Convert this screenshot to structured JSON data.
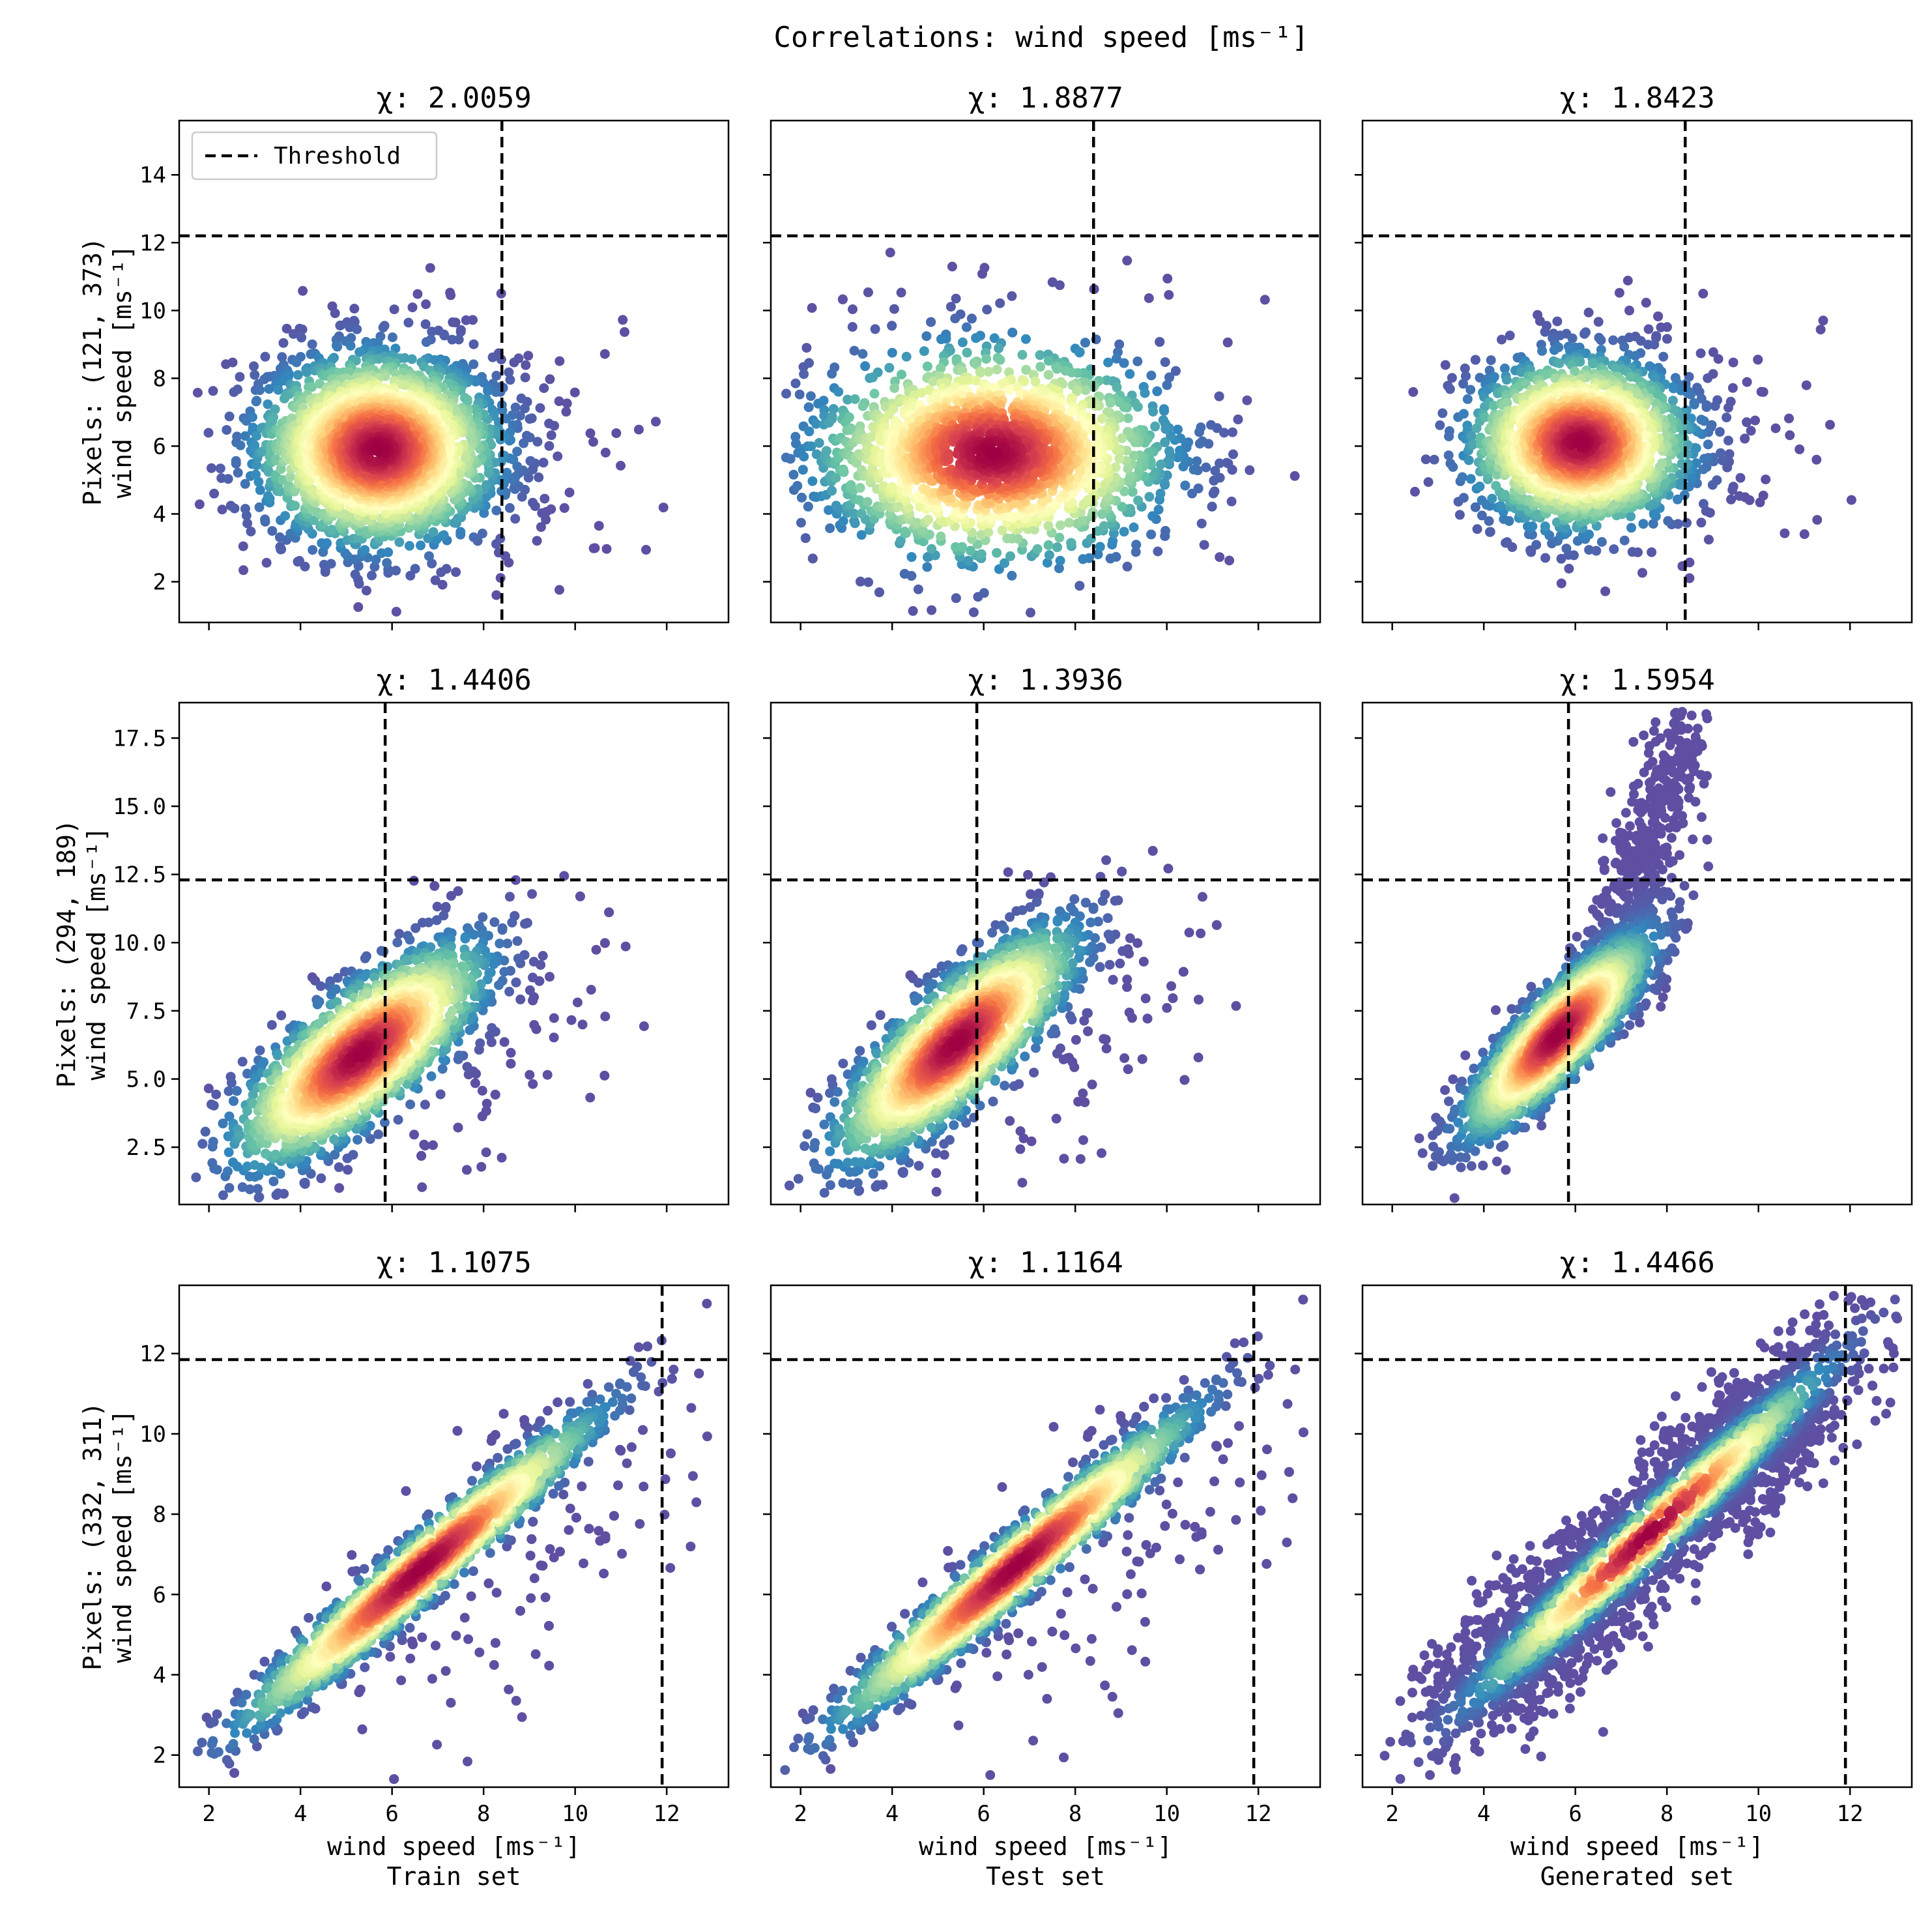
{
  "figure": {
    "suptitle": "Correlations: wind speed [ms⁻¹]",
    "legend": {
      "label": "Threshold",
      "location": "upper-left of first panel"
    },
    "colormap": [
      "#9e0142",
      "#d53e4f",
      "#f46d43",
      "#fdae61",
      "#fee08b",
      "#ffffbf",
      "#e6f598",
      "#abdda4",
      "#66c2a5",
      "#3288bd",
      "#5e4fa2"
    ],
    "threshold_color": "#000000"
  },
  "chart_data": [
    {
      "type": "scatter",
      "title": "χ: 2.0059",
      "chi": "2.0059",
      "xlabel": "",
      "ylabel": "Pixels: (121, 373)\nwind speed [ms⁻¹]",
      "xlim": [
        1.35,
        13.35
      ],
      "ylim": [
        0.8,
        15.6
      ],
      "xticks": [],
      "yticks": [
        2,
        4,
        6,
        8,
        10,
        12,
        14
      ],
      "yticklabels": [
        "2",
        "4",
        "6",
        "8",
        "10",
        "12",
        "14"
      ],
      "threshold": {
        "x": 8.4,
        "y": 12.2
      },
      "density_shape": "triangular blob",
      "centre": [
        5.7,
        5.9
      ],
      "spread": [
        1.3,
        1.4
      ],
      "rho": 0.0,
      "n_points": 2600
    },
    {
      "type": "scatter",
      "title": "χ: 1.8877",
      "chi": "1.8877",
      "xlabel": "",
      "ylabel": "",
      "xlim": [
        1.35,
        13.35
      ],
      "ylim": [
        0.8,
        15.6
      ],
      "xticks": [],
      "yticks": [
        2,
        4,
        6,
        8,
        10,
        12,
        14
      ],
      "yticklabels": [],
      "threshold": {
        "x": 8.4,
        "y": 12.2
      },
      "density_shape": "horizontal band",
      "centre": [
        6.2,
        5.8
      ],
      "spread": [
        1.9,
        1.6
      ],
      "rho": 0.0,
      "n_points": 2600
    },
    {
      "type": "scatter",
      "title": "χ: 1.8423",
      "chi": "1.8423",
      "xlabel": "",
      "ylabel": "",
      "xlim": [
        1.35,
        13.35
      ],
      "ylim": [
        0.8,
        15.6
      ],
      "xticks": [],
      "yticks": [
        2,
        4,
        6,
        8,
        10,
        12,
        14
      ],
      "yticklabels": [],
      "threshold": {
        "x": 8.4,
        "y": 12.2
      },
      "density_shape": "compact blob",
      "centre": [
        6.1,
        6.1
      ],
      "spread": [
        1.2,
        1.25
      ],
      "rho": 0.0,
      "n_points": 2200
    },
    {
      "type": "scatter",
      "title": "χ: 1.4406",
      "chi": "1.4406",
      "xlabel": "",
      "ylabel": "Pixels: (294, 189)\nwind speed [ms⁻¹]",
      "xlim": [
        1.35,
        13.35
      ],
      "ylim": [
        0.4,
        18.8
      ],
      "xticks": [],
      "yticks": [
        2.5,
        5.0,
        7.5,
        10.0,
        12.5,
        15.0,
        17.5
      ],
      "yticklabels": [
        "2.5",
        "5.0",
        "7.5",
        "10.0",
        "12.5",
        "15.0",
        "17.5"
      ],
      "threshold": {
        "x": 5.85,
        "y": 12.3
      },
      "density_shape": "tilted ellipse",
      "centre": [
        5.3,
        5.9
      ],
      "spread": [
        1.35,
        2.0
      ],
      "rho": 0.75,
      "n_points": 2600
    },
    {
      "type": "scatter",
      "title": "χ: 1.3936",
      "chi": "1.3936",
      "xlabel": "",
      "ylabel": "",
      "xlim": [
        1.35,
        13.35
      ],
      "ylim": [
        0.4,
        18.8
      ],
      "xticks": [],
      "yticks": [
        2.5,
        5.0,
        7.5,
        10.0,
        12.5,
        15.0,
        17.5
      ],
      "yticklabels": [],
      "threshold": {
        "x": 5.85,
        "y": 12.3
      },
      "density_shape": "tilted ellipse",
      "centre": [
        5.4,
        6.3
      ],
      "spread": [
        1.3,
        2.1
      ],
      "rho": 0.8,
      "n_points": 2600
    },
    {
      "type": "scatter",
      "title": "χ: 1.5954",
      "chi": "1.5954",
      "xlabel": "",
      "ylabel": "",
      "xlim": [
        1.35,
        13.35
      ],
      "ylim": [
        0.4,
        18.8
      ],
      "xticks": [],
      "yticks": [
        2.5,
        5.0,
        7.5,
        10.0,
        12.5,
        15.0,
        17.5
      ],
      "yticklabels": [],
      "threshold": {
        "x": 5.85,
        "y": 12.3
      },
      "density_shape": "curved ellipse with upward tail",
      "centre": [
        5.6,
        6.6
      ],
      "spread": [
        1.0,
        1.8
      ],
      "rho": 0.85,
      "n_points": 2400
    },
    {
      "type": "scatter",
      "title": "χ: 1.1075",
      "chi": "1.1075",
      "xlabel": "wind speed [ms⁻¹]",
      "subset_label": "Train set",
      "ylabel": "Pixels: (332, 311)\nwind speed [ms⁻¹]",
      "xlim": [
        1.35,
        13.35
      ],
      "ylim": [
        1.2,
        13.7
      ],
      "xticks": [
        2,
        4,
        6,
        8,
        10,
        12
      ],
      "xticklabels": [
        "2",
        "4",
        "6",
        "8",
        "10",
        "12"
      ],
      "yticks": [
        2,
        4,
        6,
        8,
        10,
        12
      ],
      "yticklabels": [
        "2",
        "4",
        "6",
        "8",
        "10",
        "12"
      ],
      "threshold": {
        "x": 11.9,
        "y": 11.85
      },
      "density_shape": "narrow diagonal band",
      "centre": [
        6.6,
        6.6
      ],
      "spread": [
        1.9,
        1.9
      ],
      "rho": 0.97,
      "n_points": 2600
    },
    {
      "type": "scatter",
      "title": "χ: 1.1164",
      "chi": "1.1164",
      "xlabel": "wind speed [ms⁻¹]",
      "subset_label": "Test set",
      "ylabel": "",
      "xlim": [
        1.35,
        13.35
      ],
      "ylim": [
        1.2,
        13.7
      ],
      "xticks": [
        2,
        4,
        6,
        8,
        10,
        12
      ],
      "xticklabels": [
        "2",
        "4",
        "6",
        "8",
        "10",
        "12"
      ],
      "yticks": [
        2,
        4,
        6,
        8,
        10,
        12
      ],
      "yticklabels": [],
      "threshold": {
        "x": 11.9,
        "y": 11.85
      },
      "density_shape": "narrow diagonal band",
      "centre": [
        6.7,
        6.7
      ],
      "spread": [
        1.9,
        1.9
      ],
      "rho": 0.97,
      "n_points": 2600
    },
    {
      "type": "scatter",
      "title": "χ: 1.4466",
      "chi": "1.4466",
      "xlabel": "wind speed [ms⁻¹]",
      "subset_label": "Generated set",
      "ylabel": "",
      "xlim": [
        1.35,
        13.35
      ],
      "ylim": [
        1.2,
        13.7
      ],
      "xticks": [
        2,
        4,
        6,
        8,
        10,
        12
      ],
      "xticklabels": [
        "2",
        "4",
        "6",
        "8",
        "10",
        "12"
      ],
      "yticks": [
        2,
        4,
        6,
        8,
        10,
        12
      ],
      "yticklabels": [],
      "threshold": {
        "x": 11.9,
        "y": 11.85
      },
      "density_shape": "bimodal diagonal band",
      "centre": [
        7.6,
        7.5
      ],
      "spread": [
        1.6,
        1.7
      ],
      "rho": 0.98,
      "n_points": 2400
    }
  ]
}
